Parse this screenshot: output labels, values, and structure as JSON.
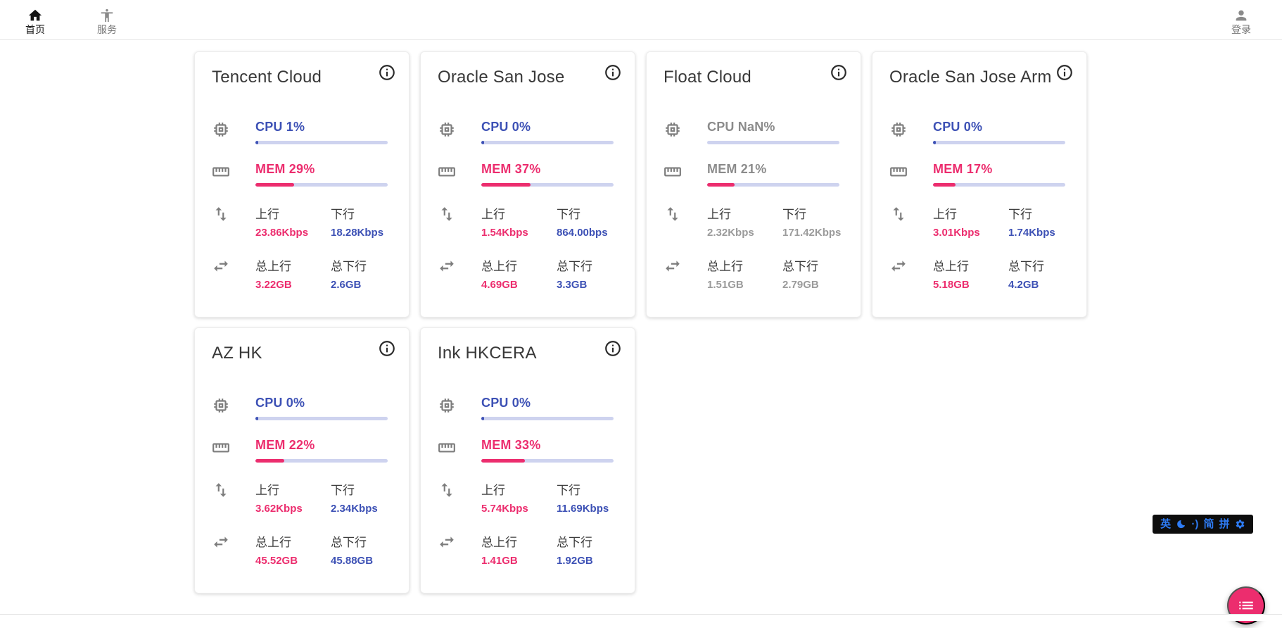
{
  "navbar": {
    "items": [
      {
        "label": "首页",
        "icon": "home-icon",
        "active": true
      },
      {
        "label": "服务",
        "icon": "services-icon",
        "active": false
      }
    ],
    "login": {
      "label": "登录",
      "icon": "person-icon"
    }
  },
  "labels": {
    "upload": "上行",
    "download": "下行",
    "total_upload": "总上行",
    "total_download": "总下行"
  },
  "colors": {
    "accent_blue": "#3d51b5",
    "accent_pink": "#ec2d6e",
    "bar_track": "#ced3ef",
    "offline_gray": "#9b9b9b",
    "ime_blue": "#2e7cf6",
    "fab_pink": "#ec2d6e"
  },
  "cards": [
    {
      "title": "Tencent Cloud",
      "offline": false,
      "cpu_text": "CPU 1%",
      "cpu_pct": 1,
      "mem_text": "MEM 29%",
      "mem_pct": 29,
      "up": "23.86Kbps",
      "down": "18.28Kbps",
      "total_up": "3.22GB",
      "total_down": "2.6GB"
    },
    {
      "title": "Oracle San Jose",
      "offline": false,
      "cpu_text": "CPU 0%",
      "cpu_pct": 0,
      "mem_text": "MEM 37%",
      "mem_pct": 37,
      "up": "1.54Kbps",
      "down": "864.00bps",
      "total_up": "4.69GB",
      "total_down": "3.3GB"
    },
    {
      "title": "Float Cloud",
      "offline": true,
      "cpu_text": "CPU NaN%",
      "cpu_pct": null,
      "mem_text": "MEM 21%",
      "mem_pct": 21,
      "up": "2.32Kbps",
      "down": "171.42Kbps",
      "total_up": "1.51GB",
      "total_down": "2.79GB"
    },
    {
      "title": "Oracle San Jose Arm",
      "offline": false,
      "cpu_text": "CPU 0%",
      "cpu_pct": 0,
      "mem_text": "MEM 17%",
      "mem_pct": 17,
      "up": "3.01Kbps",
      "down": "1.74Kbps",
      "total_up": "5.18GB",
      "total_down": "4.2GB"
    },
    {
      "title": "AZ HK",
      "offline": false,
      "cpu_text": "CPU 0%",
      "cpu_pct": 0,
      "mem_text": "MEM 22%",
      "mem_pct": 22,
      "up": "3.62Kbps",
      "down": "2.34Kbps",
      "total_up": "45.52GB",
      "total_down": "45.88GB"
    },
    {
      "title": "Ink HKCERA",
      "offline": false,
      "cpu_text": "CPU 0%",
      "cpu_pct": 0,
      "mem_text": "MEM 33%",
      "mem_pct": 33,
      "up": "5.74Kbps",
      "down": "11.69Kbps",
      "total_up": "1.41GB",
      "total_down": "1.92GB"
    }
  ],
  "ime_bar": {
    "lang": "英",
    "punct": "·)",
    "simplified": "简",
    "pinyin": "拼"
  }
}
